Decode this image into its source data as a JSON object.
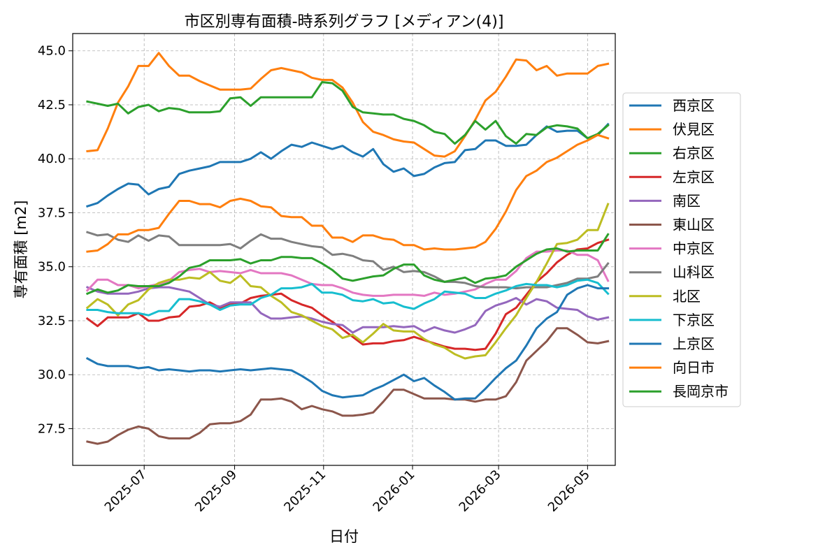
{
  "chart_data": {
    "type": "line",
    "title": "市区別専有面積-時系列グラフ [メディアン(4)]",
    "xlabel": "日付",
    "ylabel": "専有面積 [m2]",
    "ylim": [
      25.8,
      45.8
    ],
    "xlim": [
      "2025-05-13",
      "2026-05-20"
    ],
    "yticks": [
      27.5,
      30.0,
      32.5,
      35.0,
      37.5,
      40.0,
      42.5,
      45.0
    ],
    "ytick_labels": [
      "27.5",
      "30.0",
      "32.5",
      "35.0",
      "37.5",
      "40.0",
      "42.5",
      "45.0"
    ],
    "xticks": [
      "2025-07-01",
      "2025-09-01",
      "2025-11-01",
      "2026-01-01",
      "2026-03-01",
      "2026-05-01"
    ],
    "xtick_labels": [
      "2025-07",
      "2025-09",
      "2025-11",
      "2026-01",
      "2026-03",
      "2026-05"
    ],
    "grid": true,
    "legend_position": "right-outside",
    "x": [
      "2025-05-23",
      "2025-05-30",
      "2025-06-06",
      "2025-06-13",
      "2025-06-20",
      "2025-06-27",
      "2025-07-04",
      "2025-07-11",
      "2025-07-18",
      "2025-07-25",
      "2025-08-01",
      "2025-08-08",
      "2025-08-15",
      "2025-08-22",
      "2025-08-29",
      "2025-09-05",
      "2025-09-12",
      "2025-09-19",
      "2025-09-26",
      "2025-10-03",
      "2025-10-10",
      "2025-10-17",
      "2025-10-24",
      "2025-10-31",
      "2025-11-07",
      "2025-11-14",
      "2025-11-21",
      "2025-11-28",
      "2025-12-05",
      "2025-12-12",
      "2025-12-19",
      "2025-12-26",
      "2026-01-02",
      "2026-01-09",
      "2026-01-16",
      "2026-01-23",
      "2026-01-30",
      "2026-02-06",
      "2026-02-13",
      "2026-02-20",
      "2026-02-27",
      "2026-03-06",
      "2026-03-13",
      "2026-03-20",
      "2026-03-27",
      "2026-04-03",
      "2026-04-10",
      "2026-04-17",
      "2026-04-24",
      "2026-05-01",
      "2026-05-08",
      "2026-05-15"
    ],
    "series": [
      {
        "name": "西京区",
        "color": "#1f77b4",
        "values": [
          37.8,
          37.95,
          38.3,
          38.6,
          38.85,
          38.8,
          38.35,
          38.6,
          38.7,
          39.3,
          39.45,
          39.55,
          39.65,
          39.85,
          39.85,
          39.85,
          40.0,
          40.3,
          40.0,
          40.35,
          40.65,
          40.55,
          40.75,
          40.6,
          40.45,
          40.6,
          40.3,
          40.1,
          40.45,
          39.75,
          39.4,
          39.55,
          39.2,
          39.3,
          39.6,
          39.8,
          39.85,
          40.4,
          40.45,
          40.85,
          40.85,
          40.6,
          40.6,
          40.65,
          41.1,
          41.5,
          41.25,
          41.3,
          41.3,
          40.95,
          41.1,
          41.6
        ]
      },
      {
        "name": "伏見区",
        "color": "#ff7f0e",
        "values": [
          40.35,
          40.4,
          41.4,
          42.6,
          43.35,
          44.3,
          44.3,
          44.9,
          44.3,
          43.85,
          43.85,
          43.6,
          43.4,
          43.2,
          43.2,
          43.2,
          43.25,
          43.7,
          44.1,
          44.2,
          44.1,
          44.0,
          43.75,
          43.65,
          43.65,
          43.3,
          42.6,
          41.7,
          41.25,
          41.1,
          40.9,
          40.8,
          40.75,
          40.45,
          40.15,
          40.1,
          40.35,
          41.05,
          41.8,
          42.7,
          43.1,
          43.8,
          44.6,
          44.55,
          44.1,
          44.3,
          43.85,
          43.95,
          43.95,
          43.95,
          44.3,
          44.4
        ]
      },
      {
        "name": "右京区",
        "color": "#2ca02c",
        "values": [
          42.65,
          42.55,
          42.45,
          42.55,
          42.1,
          42.4,
          42.5,
          42.2,
          42.35,
          42.3,
          42.15,
          42.15,
          42.15,
          42.2,
          42.8,
          42.85,
          42.45,
          42.85,
          42.85,
          42.85,
          42.85,
          42.85,
          42.85,
          43.55,
          43.5,
          43.15,
          42.4,
          42.15,
          42.1,
          42.05,
          42.05,
          41.85,
          41.75,
          41.55,
          41.25,
          41.15,
          40.7,
          41.1,
          41.75,
          41.35,
          41.75,
          41.05,
          40.7,
          41.15,
          41.1,
          41.45,
          41.55,
          41.5,
          41.4,
          40.95,
          41.15,
          41.55
        ]
      },
      {
        "name": "左京区",
        "color": "#d62728",
        "values": [
          32.6,
          32.25,
          32.65,
          32.65,
          32.65,
          32.85,
          32.5,
          32.5,
          32.65,
          32.7,
          33.15,
          33.2,
          33.35,
          33.1,
          33.25,
          33.3,
          33.55,
          33.65,
          33.7,
          33.75,
          33.45,
          33.25,
          33.1,
          32.75,
          32.45,
          32.1,
          31.75,
          31.4,
          31.45,
          31.45,
          31.55,
          31.6,
          31.75,
          31.6,
          31.45,
          31.3,
          31.2,
          31.2,
          31.15,
          31.2,
          31.9,
          32.8,
          33.1,
          33.7,
          34.3,
          34.7,
          35.2,
          35.55,
          35.8,
          35.85,
          36.1,
          36.25
        ]
      },
      {
        "name": "南区",
        "color": "#9467bd",
        "values": [
          34.05,
          33.85,
          33.75,
          33.75,
          33.75,
          33.85,
          34.0,
          34.05,
          34.05,
          33.95,
          33.85,
          33.55,
          33.25,
          33.15,
          33.35,
          33.35,
          33.35,
          32.85,
          32.6,
          32.6,
          32.65,
          32.7,
          32.6,
          32.45,
          32.35,
          32.3,
          31.95,
          32.2,
          32.2,
          32.2,
          32.25,
          32.2,
          32.25,
          32.0,
          32.2,
          32.05,
          31.95,
          32.1,
          32.3,
          32.95,
          33.2,
          33.35,
          33.55,
          33.25,
          33.5,
          33.4,
          33.1,
          33.05,
          33.0,
          32.7,
          32.55,
          32.65
        ]
      },
      {
        "name": "東山区",
        "color": "#8c564b",
        "values": [
          26.9,
          26.8,
          26.9,
          27.2,
          27.45,
          27.6,
          27.5,
          27.15,
          27.05,
          27.05,
          27.05,
          27.3,
          27.7,
          27.75,
          27.75,
          27.85,
          28.15,
          28.85,
          28.85,
          28.9,
          28.75,
          28.4,
          28.55,
          28.4,
          28.3,
          28.1,
          28.1,
          28.15,
          28.25,
          28.75,
          29.3,
          29.3,
          29.1,
          28.9,
          28.9,
          28.9,
          28.85,
          28.85,
          28.75,
          28.85,
          28.85,
          29.0,
          29.65,
          30.65,
          31.1,
          31.55,
          32.15,
          32.15,
          31.85,
          31.5,
          31.45,
          31.55
        ]
      },
      {
        "name": "中京区",
        "color": "#e377c2",
        "values": [
          33.9,
          34.4,
          34.4,
          34.15,
          34.15,
          34.0,
          34.1,
          34.2,
          34.35,
          34.75,
          34.85,
          34.9,
          34.75,
          34.8,
          34.75,
          34.7,
          34.85,
          34.7,
          34.7,
          34.7,
          34.6,
          34.4,
          34.2,
          34.15,
          34.15,
          34.0,
          33.8,
          33.7,
          33.65,
          33.65,
          33.7,
          33.7,
          33.7,
          33.65,
          33.8,
          33.7,
          33.75,
          33.85,
          33.95,
          34.2,
          34.4,
          34.4,
          34.8,
          35.4,
          35.7,
          35.7,
          35.75,
          35.75,
          35.55,
          35.55,
          35.3,
          34.35
        ]
      },
      {
        "name": "山科区",
        "color": "#7f7f7f",
        "values": [
          36.6,
          36.45,
          36.5,
          36.25,
          36.15,
          36.45,
          36.2,
          36.45,
          36.4,
          36.0,
          36.0,
          36.0,
          36.0,
          36.0,
          36.05,
          35.85,
          36.2,
          36.5,
          36.3,
          36.3,
          36.15,
          36.05,
          35.95,
          35.9,
          35.55,
          35.6,
          35.5,
          35.3,
          35.25,
          34.85,
          35.0,
          34.75,
          34.8,
          34.75,
          34.55,
          34.3,
          34.3,
          34.25,
          34.1,
          34.05,
          34.05,
          34.05,
          34.0,
          34.05,
          34.05,
          34.05,
          34.15,
          34.25,
          34.45,
          34.45,
          34.55,
          35.15
        ]
      },
      {
        "name": "北区",
        "color": "#bcbd22",
        "values": [
          33.1,
          33.5,
          33.25,
          32.75,
          33.25,
          33.45,
          33.95,
          34.25,
          34.4,
          34.4,
          34.5,
          34.45,
          34.75,
          34.35,
          34.25,
          34.6,
          34.1,
          34.05,
          33.65,
          33.35,
          32.9,
          32.75,
          32.5,
          32.25,
          32.1,
          31.7,
          31.85,
          31.5,
          31.9,
          32.35,
          32.05,
          32.0,
          32.0,
          31.65,
          31.4,
          31.25,
          30.95,
          30.75,
          30.85,
          30.9,
          31.5,
          32.15,
          32.75,
          33.55,
          34.3,
          35.15,
          36.05,
          36.1,
          36.25,
          36.7,
          36.7,
          37.9
        ]
      },
      {
        "name": "下京区",
        "color": "#17becf",
        "values": [
          33.0,
          33.0,
          32.9,
          32.85,
          32.85,
          32.85,
          32.75,
          32.95,
          32.95,
          33.5,
          33.5,
          33.4,
          33.25,
          33.0,
          33.2,
          33.25,
          33.25,
          33.55,
          33.7,
          34.0,
          34.0,
          34.05,
          34.2,
          33.8,
          33.8,
          33.7,
          33.45,
          33.4,
          33.5,
          33.3,
          33.35,
          33.15,
          33.05,
          33.3,
          33.5,
          33.85,
          33.8,
          33.75,
          33.55,
          33.55,
          33.75,
          33.9,
          34.1,
          34.2,
          34.15,
          34.15,
          34.05,
          34.15,
          34.35,
          34.4,
          34.25,
          33.75
        ]
      },
      {
        "name": "上京区",
        "color": "#1f77b4",
        "values": [
          30.75,
          30.5,
          30.4,
          30.4,
          30.4,
          30.3,
          30.35,
          30.2,
          30.25,
          30.2,
          30.15,
          30.2,
          30.2,
          30.15,
          30.2,
          30.25,
          30.2,
          30.25,
          30.3,
          30.25,
          30.2,
          29.95,
          29.65,
          29.25,
          29.05,
          28.95,
          29.0,
          29.05,
          29.3,
          29.5,
          29.75,
          30.0,
          29.7,
          29.85,
          29.5,
          29.2,
          28.85,
          28.9,
          28.9,
          29.35,
          29.85,
          30.3,
          30.65,
          31.35,
          32.15,
          32.6,
          32.9,
          33.7,
          34.0,
          34.15,
          34.0,
          34.0
        ]
      },
      {
        "name": "向日市",
        "color": "#ff7f0e",
        "values": [
          35.7,
          35.75,
          36.05,
          36.5,
          36.5,
          36.7,
          36.7,
          36.8,
          37.45,
          38.05,
          38.05,
          37.9,
          37.9,
          37.75,
          38.05,
          38.15,
          38.05,
          37.8,
          37.75,
          37.35,
          37.3,
          37.3,
          36.9,
          36.9,
          36.35,
          36.35,
          36.15,
          36.45,
          36.45,
          36.3,
          36.25,
          36.0,
          36.0,
          35.8,
          35.85,
          35.8,
          35.8,
          35.85,
          35.9,
          36.15,
          36.75,
          37.55,
          38.55,
          39.2,
          39.45,
          39.85,
          40.05,
          40.35,
          40.65,
          40.85,
          41.1,
          40.95
        ]
      },
      {
        "name": "長岡京市",
        "color": "#2ca02c",
        "values": [
          33.75,
          33.95,
          33.8,
          33.9,
          34.15,
          34.1,
          34.1,
          34.1,
          34.25,
          34.55,
          34.95,
          35.05,
          35.3,
          35.3,
          35.3,
          35.35,
          35.15,
          35.3,
          35.3,
          35.45,
          35.45,
          35.4,
          35.4,
          35.15,
          34.85,
          34.45,
          34.35,
          34.45,
          34.55,
          34.6,
          34.9,
          35.1,
          35.1,
          34.6,
          34.4,
          34.3,
          34.4,
          34.5,
          34.25,
          34.45,
          34.5,
          34.6,
          35.0,
          35.3,
          35.6,
          35.8,
          35.85,
          35.7,
          35.75,
          35.75,
          35.75,
          36.5
        ]
      }
    ]
  }
}
